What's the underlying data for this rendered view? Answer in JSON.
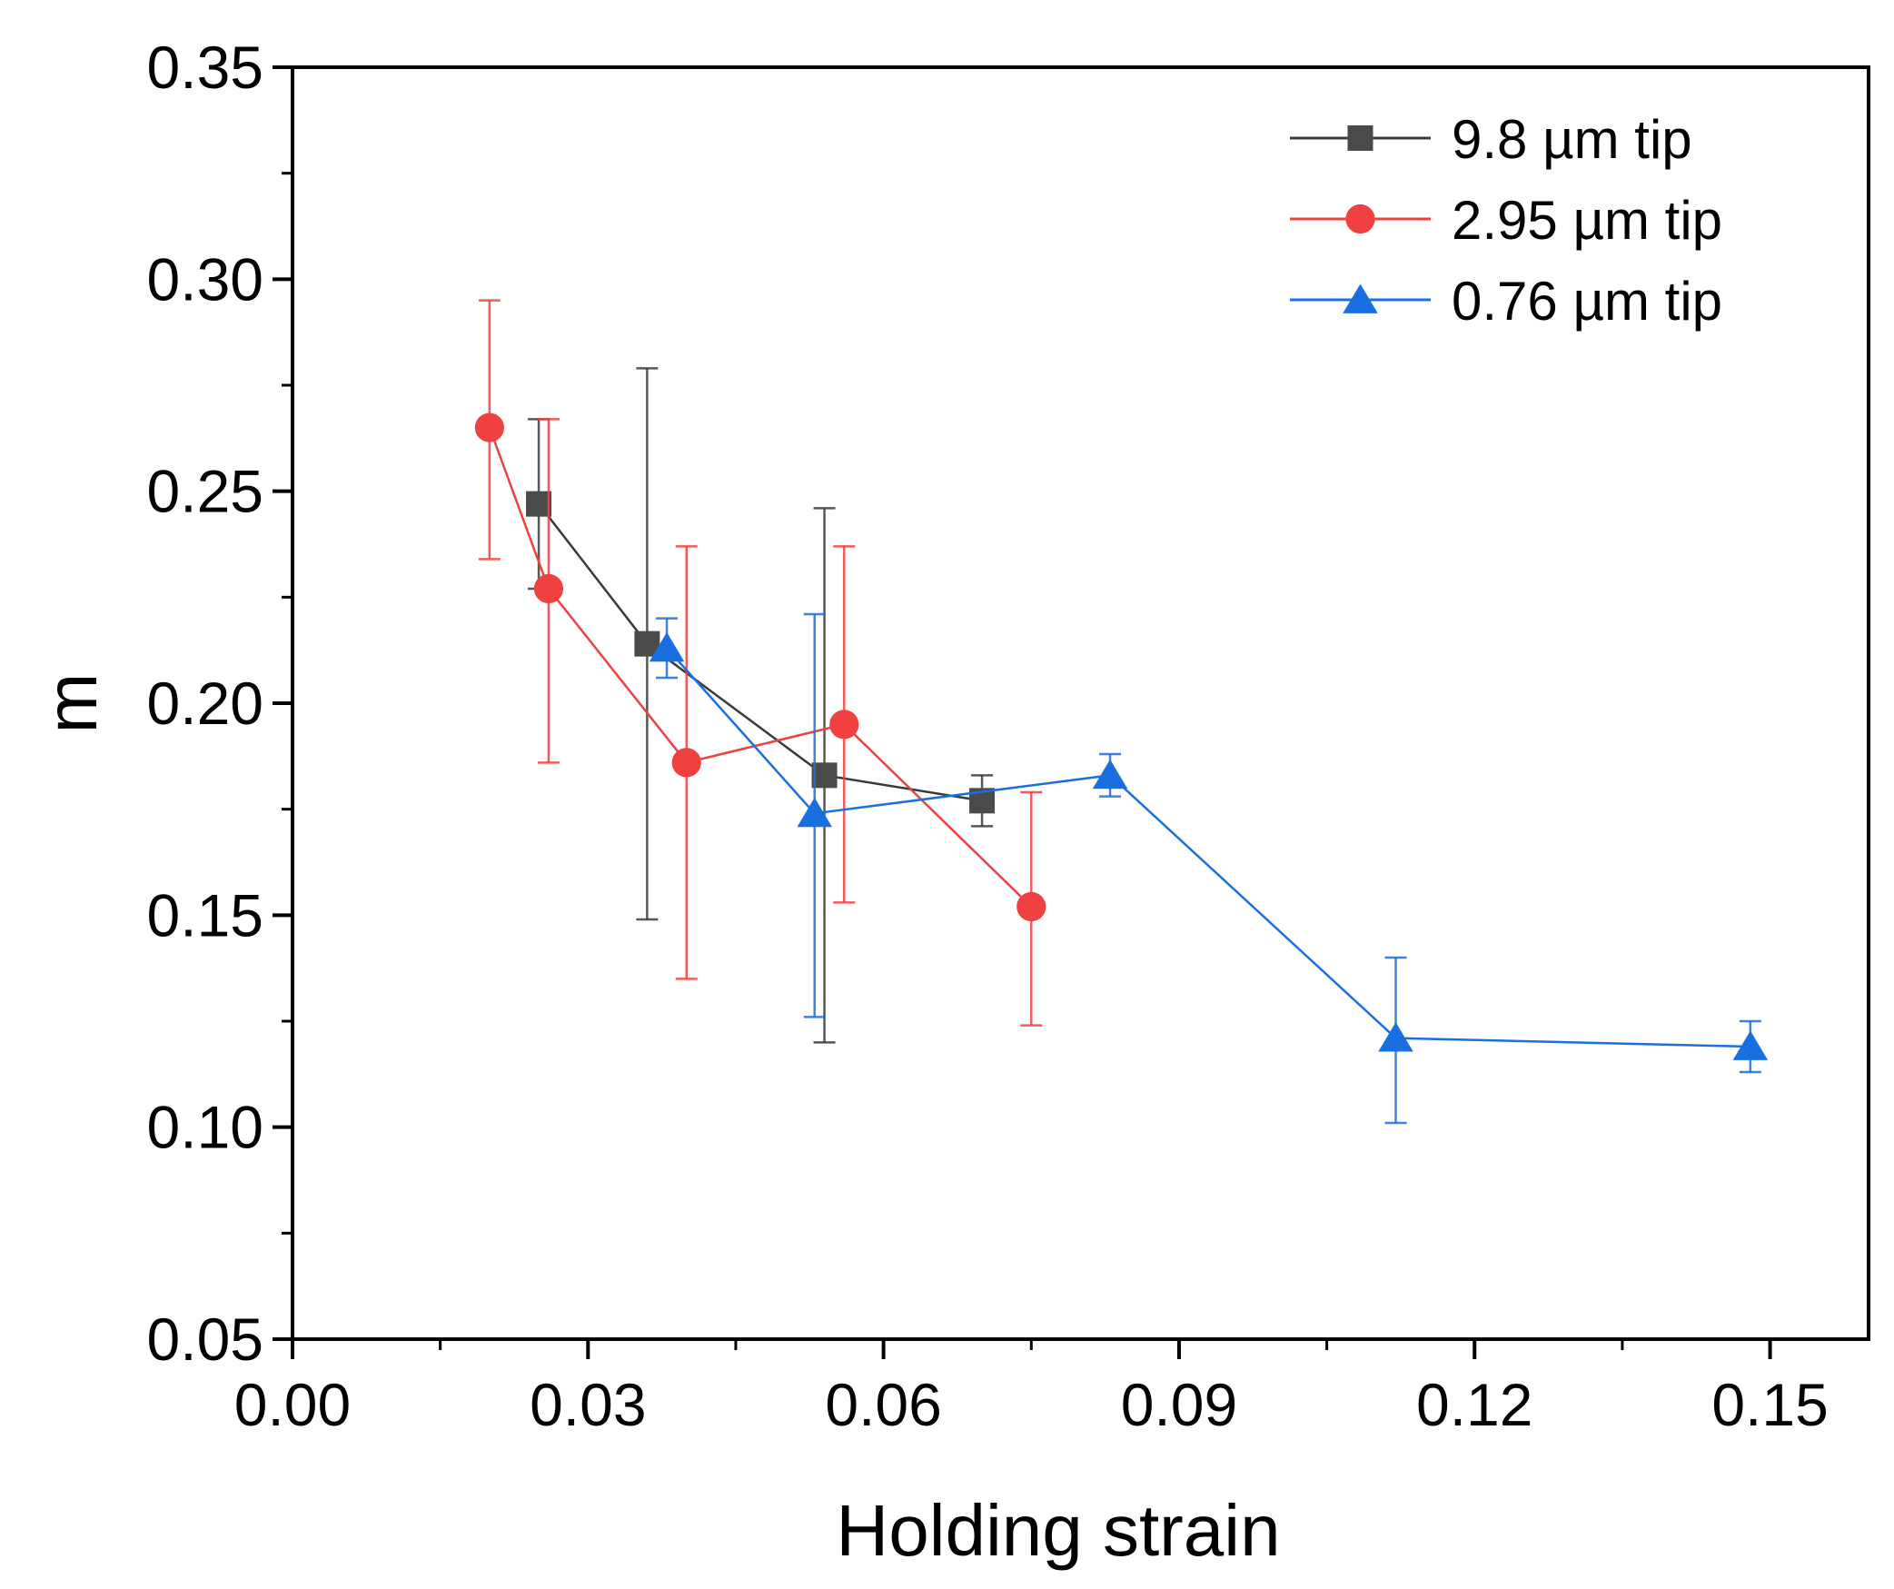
{
  "chart_data": {
    "type": "scatter",
    "xlabel": "Holding strain",
    "ylabel": "m",
    "xlim": [
      0,
      0.16
    ],
    "ylim": [
      0.05,
      0.35
    ],
    "x_major_ticks": [
      "0.00",
      "0.03",
      "0.06",
      "0.09",
      "0.12",
      "0.15"
    ],
    "x_major_values": [
      0,
      0.03,
      0.06,
      0.09,
      0.12,
      0.15
    ],
    "x_minor_values": [
      0.015,
      0.045,
      0.075,
      0.105,
      0.135
    ],
    "y_major_ticks": [
      "0.05",
      "0.10",
      "0.15",
      "0.20",
      "0.25",
      "0.30",
      "0.35"
    ],
    "y_major_values": [
      0.05,
      0.1,
      0.15,
      0.2,
      0.25,
      0.3,
      0.35
    ],
    "y_minor_values": [
      0.075,
      0.125,
      0.175,
      0.225,
      0.275,
      0.325
    ],
    "grid": false,
    "legend_position": "top-right",
    "series": [
      {
        "name": "9.8 µm tip",
        "color": "#4a4a4a",
        "line_color": "#3a3a3a",
        "marker": "square",
        "points": [
          {
            "x": 0.025,
            "y": 0.247,
            "err_low": 0.227,
            "err_high": 0.267
          },
          {
            "x": 0.036,
            "y": 0.214,
            "err_low": 0.149,
            "err_high": 0.279
          },
          {
            "x": 0.054,
            "y": 0.183,
            "err_low": 0.12,
            "err_high": 0.246
          },
          {
            "x": 0.07,
            "y": 0.177,
            "err_low": 0.171,
            "err_high": 0.183
          }
        ]
      },
      {
        "name": "2.95 µm tip",
        "color": "#f04040",
        "line_color": "#f04040",
        "marker": "circle",
        "points": [
          {
            "x": 0.02,
            "y": 0.265,
            "err_low": 0.234,
            "err_high": 0.295
          },
          {
            "x": 0.026,
            "y": 0.227,
            "err_low": 0.186,
            "err_high": 0.267
          },
          {
            "x": 0.04,
            "y": 0.186,
            "err_low": 0.135,
            "err_high": 0.237
          },
          {
            "x": 0.056,
            "y": 0.195,
            "err_low": 0.153,
            "err_high": 0.237
          },
          {
            "x": 0.075,
            "y": 0.152,
            "err_low": 0.124,
            "err_high": 0.179
          }
        ]
      },
      {
        "name": "0.76 µm tip",
        "color": "#1a6fe0",
        "line_color": "#1a6fe0",
        "marker": "triangle",
        "points": [
          {
            "x": 0.038,
            "y": 0.213,
            "err_low": 0.206,
            "err_high": 0.22
          },
          {
            "x": 0.053,
            "y": 0.174,
            "err_low": 0.126,
            "err_high": 0.221
          },
          {
            "x": 0.083,
            "y": 0.183,
            "err_low": 0.178,
            "err_high": 0.188
          },
          {
            "x": 0.112,
            "y": 0.121,
            "err_low": 0.101,
            "err_high": 0.14
          },
          {
            "x": 0.148,
            "y": 0.119,
            "err_low": 0.113,
            "err_high": 0.125
          }
        ]
      }
    ]
  }
}
